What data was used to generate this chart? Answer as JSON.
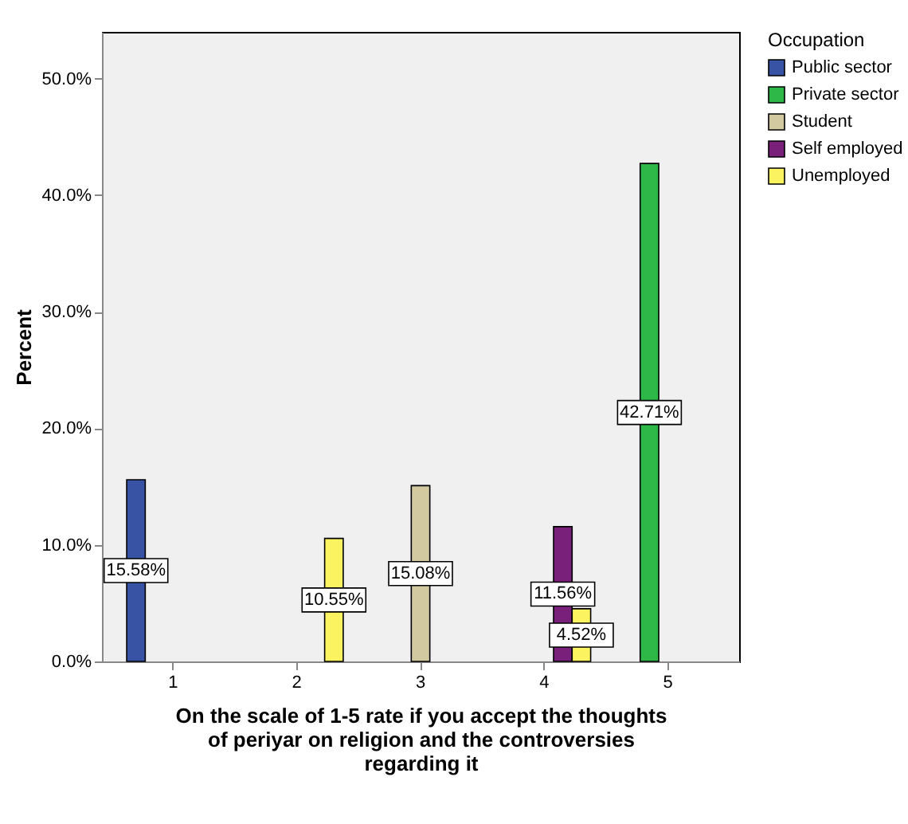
{
  "chart_data": {
    "type": "bar",
    "xlabel": "On the scale of 1-5 rate if you accept the thoughts of periyar on religion and the controversies regarding it",
    "ylabel": "Percent",
    "legend_title": "Occupation",
    "categories": [
      "1",
      "2",
      "3",
      "4",
      "5"
    ],
    "series": [
      {
        "name": "Public sector",
        "color": "#3953a4",
        "values": [
          15.58,
          null,
          null,
          null,
          null
        ],
        "value_labels": [
          "15.58%",
          null,
          null,
          null,
          null
        ]
      },
      {
        "name": "Private sector",
        "color": "#2eb848",
        "values": [
          null,
          null,
          null,
          null,
          42.71
        ],
        "value_labels": [
          null,
          null,
          null,
          null,
          "42.71%"
        ]
      },
      {
        "name": "Student",
        "color": "#d2c9a1",
        "values": [
          null,
          null,
          15.08,
          null,
          null
        ],
        "value_labels": [
          null,
          null,
          "15.08%",
          null,
          null
        ]
      },
      {
        "name": "Self employed",
        "color": "#79207a",
        "values": [
          null,
          null,
          null,
          11.56,
          null
        ],
        "value_labels": [
          null,
          null,
          null,
          "11.56%",
          null
        ]
      },
      {
        "name": "Unemployed",
        "color": "#fbf460",
        "values": [
          null,
          10.55,
          null,
          4.52,
          null
        ],
        "value_labels": [
          null,
          "10.55%",
          null,
          "4.52%",
          null
        ]
      }
    ],
    "ylim": [
      0,
      54
    ],
    "yticks": [
      {
        "value": 0,
        "label": "0.0%"
      },
      {
        "value": 10,
        "label": "10.0%"
      },
      {
        "value": 20,
        "label": "20.0%"
      },
      {
        "value": 30,
        "label": "30.0%"
      },
      {
        "value": 40,
        "label": "40.0%"
      },
      {
        "value": 50,
        "label": "50.0%"
      }
    ],
    "grid": false,
    "legend": "right"
  }
}
